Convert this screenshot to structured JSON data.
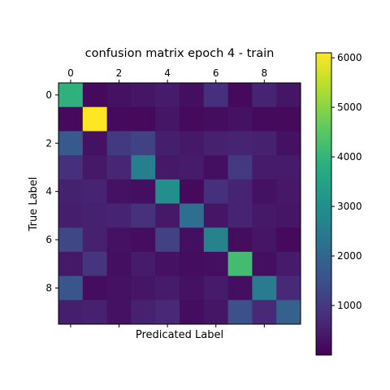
{
  "chart_data": {
    "type": "heatmap",
    "title": "confusion matrix epoch 4 - train",
    "xlabel": "Predicated Label",
    "ylabel": "True Label",
    "x_tick_labels": [
      "0",
      "2",
      "4",
      "6",
      "8"
    ],
    "x_tick_positions": [
      0,
      2,
      4,
      6,
      8
    ],
    "y_tick_labels": [
      "0",
      "2",
      "4",
      "6",
      "8"
    ],
    "y_tick_positions": [
      0,
      2,
      4,
      6,
      8
    ],
    "colormap": "viridis",
    "color_range": [
      0,
      6100
    ],
    "colorbar_ticks": [
      1000,
      2000,
      3000,
      4000,
      5000,
      6000
    ],
    "colorbar_tick_labels": [
      "1000",
      "2000",
      "3000",
      "4000",
      "5000",
      "6000"
    ],
    "matrix": [
      [
        3900,
        150,
        300,
        350,
        450,
        250,
        800,
        150,
        600,
        350
      ],
      [
        150,
        6100,
        150,
        150,
        350,
        150,
        200,
        300,
        150,
        150
      ],
      [
        1700,
        300,
        1000,
        1200,
        500,
        400,
        550,
        600,
        550,
        300
      ],
      [
        800,
        400,
        650,
        2600,
        400,
        450,
        250,
        1000,
        450,
        450
      ],
      [
        550,
        600,
        300,
        250,
        3000,
        150,
        800,
        600,
        300,
        400
      ],
      [
        500,
        550,
        600,
        850,
        400,
        2200,
        350,
        600,
        400,
        350
      ],
      [
        1300,
        550,
        300,
        200,
        1200,
        250,
        2700,
        200,
        350,
        150
      ],
      [
        400,
        900,
        250,
        450,
        300,
        200,
        250,
        4200,
        250,
        450
      ],
      [
        1600,
        200,
        300,
        350,
        450,
        300,
        450,
        250,
        2500,
        700
      ],
      [
        500,
        550,
        300,
        550,
        700,
        200,
        350,
        1500,
        700,
        1900
      ]
    ]
  }
}
